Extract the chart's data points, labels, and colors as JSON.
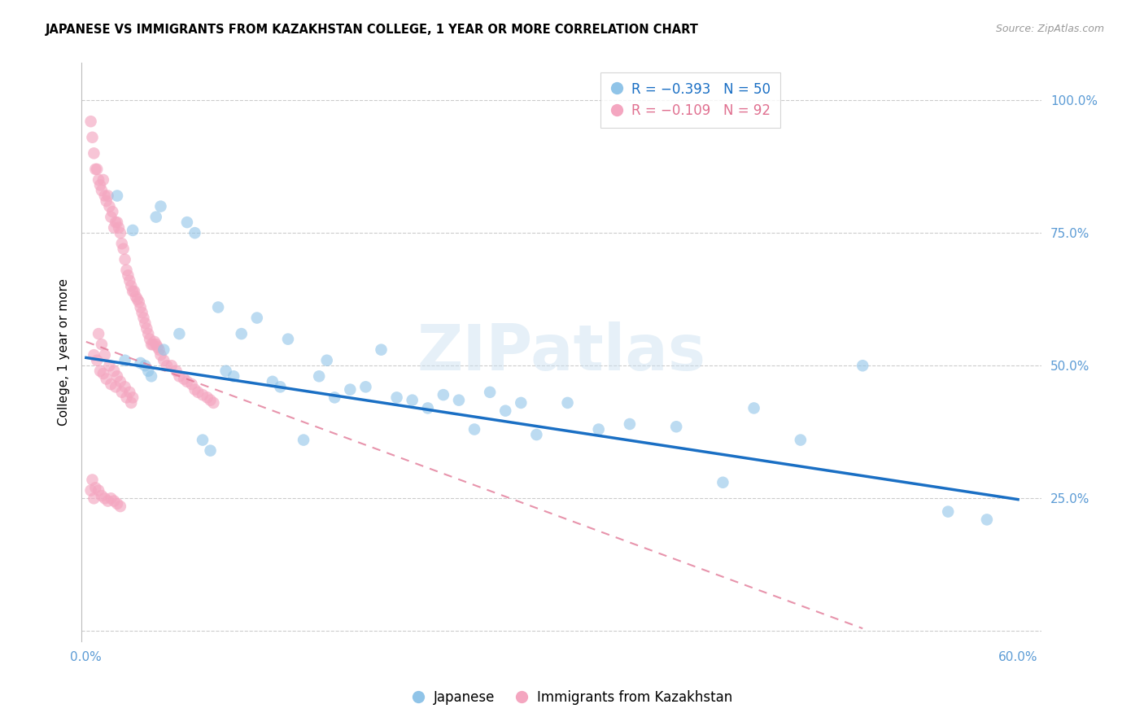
{
  "title": "JAPANESE VS IMMIGRANTS FROM KAZAKHSTAN COLLEGE, 1 YEAR OR MORE CORRELATION CHART",
  "source": "Source: ZipAtlas.com",
  "ylabel": "College, 1 year or more",
  "watermark": "ZIPatlas",
  "xlim": [
    -0.003,
    0.615
  ],
  "ylim": [
    -0.02,
    1.07
  ],
  "xtick_positions": [
    0.0,
    0.1,
    0.2,
    0.3,
    0.4,
    0.5,
    0.6
  ],
  "xtick_labels": [
    "0.0%",
    "",
    "",
    "",
    "",
    "",
    "60.0%"
  ],
  "ytick_positions": [
    0.0,
    0.25,
    0.5,
    0.75,
    1.0
  ],
  "ytick_labels": [
    "",
    "25.0%",
    "50.0%",
    "75.0%",
    "100.0%"
  ],
  "blue_color": "#90c4e8",
  "pink_color": "#f4a6c0",
  "blue_line_color": "#1a6fc4",
  "pink_line_color": "#e07090",
  "grid_color": "#cccccc",
  "axis_color": "#bbbbbb",
  "tick_label_color": "#5b9bd5",
  "legend_blue_r": "R = −0.393",
  "legend_blue_n": "N = 50",
  "legend_pink_r": "R = −0.109",
  "legend_pink_n": "N = 92",
  "blue_trendline_x": [
    0.0,
    0.6
  ],
  "blue_trendline_y": [
    0.515,
    0.248
  ],
  "pink_trendline_x": [
    0.0,
    0.5
  ],
  "pink_trendline_y": [
    0.545,
    0.005
  ],
  "japanese_x": [
    0.02,
    0.025,
    0.03,
    0.035,
    0.038,
    0.04,
    0.042,
    0.045,
    0.048,
    0.05,
    0.06,
    0.065,
    0.07,
    0.075,
    0.08,
    0.085,
    0.09,
    0.095,
    0.1,
    0.11,
    0.12,
    0.125,
    0.13,
    0.14,
    0.15,
    0.155,
    0.16,
    0.17,
    0.18,
    0.19,
    0.2,
    0.21,
    0.22,
    0.23,
    0.24,
    0.25,
    0.26,
    0.27,
    0.28,
    0.29,
    0.31,
    0.33,
    0.35,
    0.38,
    0.41,
    0.43,
    0.46,
    0.5,
    0.555,
    0.58
  ],
  "japanese_y": [
    0.82,
    0.51,
    0.755,
    0.505,
    0.5,
    0.49,
    0.48,
    0.78,
    0.8,
    0.53,
    0.56,
    0.77,
    0.75,
    0.36,
    0.34,
    0.61,
    0.49,
    0.48,
    0.56,
    0.59,
    0.47,
    0.46,
    0.55,
    0.36,
    0.48,
    0.51,
    0.44,
    0.455,
    0.46,
    0.53,
    0.44,
    0.435,
    0.42,
    0.445,
    0.435,
    0.38,
    0.45,
    0.415,
    0.43,
    0.37,
    0.43,
    0.38,
    0.39,
    0.385,
    0.28,
    0.42,
    0.36,
    0.5,
    0.225,
    0.21
  ],
  "kazakh_x": [
    0.003,
    0.004,
    0.005,
    0.006,
    0.007,
    0.008,
    0.009,
    0.01,
    0.011,
    0.012,
    0.013,
    0.014,
    0.015,
    0.016,
    0.017,
    0.018,
    0.019,
    0.02,
    0.021,
    0.022,
    0.023,
    0.024,
    0.025,
    0.026,
    0.027,
    0.028,
    0.029,
    0.03,
    0.031,
    0.032,
    0.033,
    0.034,
    0.035,
    0.036,
    0.037,
    0.038,
    0.039,
    0.04,
    0.041,
    0.042,
    0.043,
    0.044,
    0.045,
    0.046,
    0.047,
    0.048,
    0.05,
    0.052,
    0.055,
    0.058,
    0.06,
    0.063,
    0.065,
    0.068,
    0.07,
    0.072,
    0.075,
    0.078,
    0.08,
    0.082,
    0.008,
    0.01,
    0.012,
    0.015,
    0.018,
    0.02,
    0.022,
    0.025,
    0.028,
    0.03,
    0.005,
    0.007,
    0.009,
    0.011,
    0.013,
    0.016,
    0.019,
    0.023,
    0.026,
    0.029,
    0.004,
    0.006,
    0.008,
    0.01,
    0.012,
    0.014,
    0.016,
    0.018,
    0.02,
    0.022,
    0.003,
    0.005
  ],
  "kazakh_y": [
    0.96,
    0.93,
    0.9,
    0.87,
    0.87,
    0.85,
    0.84,
    0.83,
    0.85,
    0.82,
    0.81,
    0.82,
    0.8,
    0.78,
    0.79,
    0.76,
    0.77,
    0.77,
    0.76,
    0.75,
    0.73,
    0.72,
    0.7,
    0.68,
    0.67,
    0.66,
    0.65,
    0.64,
    0.64,
    0.63,
    0.625,
    0.62,
    0.61,
    0.6,
    0.59,
    0.58,
    0.57,
    0.56,
    0.55,
    0.54,
    0.54,
    0.545,
    0.54,
    0.535,
    0.53,
    0.52,
    0.51,
    0.5,
    0.5,
    0.49,
    0.48,
    0.475,
    0.47,
    0.465,
    0.455,
    0.45,
    0.445,
    0.44,
    0.435,
    0.43,
    0.56,
    0.54,
    0.52,
    0.5,
    0.49,
    0.48,
    0.47,
    0.46,
    0.45,
    0.44,
    0.52,
    0.51,
    0.49,
    0.485,
    0.475,
    0.465,
    0.46,
    0.45,
    0.44,
    0.43,
    0.285,
    0.27,
    0.265,
    0.255,
    0.25,
    0.245,
    0.25,
    0.245,
    0.24,
    0.235,
    0.265,
    0.25
  ],
  "bg_color": "#ffffff"
}
